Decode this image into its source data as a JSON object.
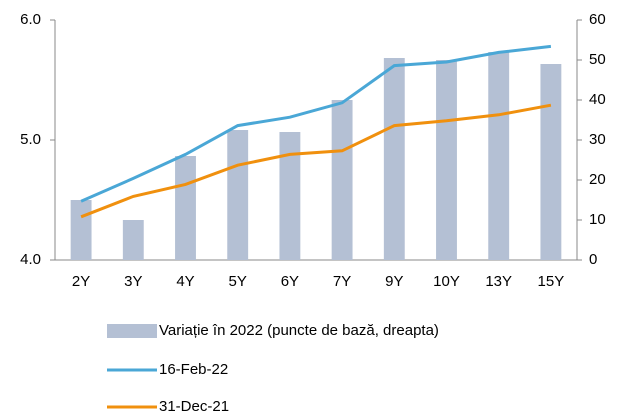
{
  "chart_data": {
    "type": "combo",
    "categories": [
      "2Y",
      "3Y",
      "4Y",
      "5Y",
      "6Y",
      "7Y",
      "9Y",
      "10Y",
      "13Y",
      "15Y"
    ],
    "series": [
      {
        "name": "Variație în 2022 (puncte de bază, dreapta)",
        "type": "bar",
        "axis": "y2",
        "color": "#b4c0d4",
        "values": [
          15,
          10,
          26,
          32.5,
          32,
          40,
          50.5,
          50,
          52,
          49
        ]
      },
      {
        "name": "16-Feb-22",
        "type": "line",
        "color": "#4aa7d6",
        "values": [
          4.49,
          4.68,
          4.88,
          5.12,
          5.19,
          5.31,
          5.62,
          5.65,
          5.73,
          5.78
        ]
      },
      {
        "name": "31-Dec-21",
        "type": "line",
        "color": "#f0900e",
        "values": [
          4.36,
          4.53,
          4.63,
          4.79,
          4.88,
          4.91,
          5.12,
          5.16,
          5.21,
          5.29
        ]
      }
    ],
    "ylim": [
      4,
      6
    ],
    "yticks": [
      {
        "value": 4,
        "label": "4.0"
      },
      {
        "value": 5,
        "label": "5.0"
      },
      {
        "value": 6,
        "label": "6.0"
      }
    ],
    "y2lim": [
      0,
      60
    ],
    "y2ticks": [
      0,
      10,
      20,
      30,
      40,
      50,
      60
    ],
    "grid": false
  }
}
